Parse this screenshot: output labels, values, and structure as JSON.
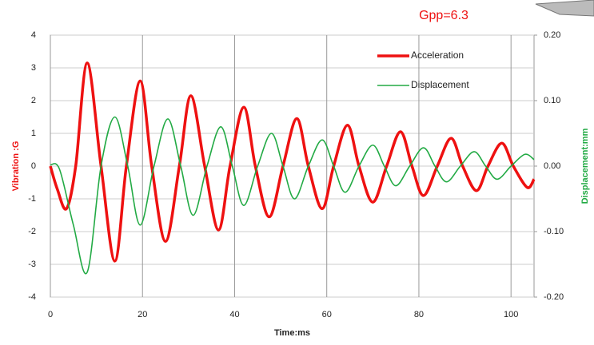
{
  "chart_data": {
    "type": "line",
    "annotation": "Gpp=6.3",
    "xlabel": "Time:ms",
    "ylabel": "Vibration :G",
    "y2label": "Displacement:mm",
    "xlim": [
      0,
      105
    ],
    "xticks": [
      0,
      20,
      40,
      60,
      80,
      100
    ],
    "ylim": [
      -4,
      4
    ],
    "yticks": [
      -4,
      -3,
      -2,
      -1,
      0,
      1,
      2,
      3,
      4
    ],
    "y2lim": [
      -0.2,
      0.2
    ],
    "y2ticks": [
      {
        "value": -0.2,
        "label": "-0.20"
      },
      {
        "value": -0.1,
        "label": "-0.10"
      },
      {
        "value": 0,
        "label": "0.00"
      },
      {
        "value": 0.1,
        "label": "0.10"
      },
      {
        "value": 0.2,
        "label": "0.20"
      }
    ],
    "grid": true,
    "legend": "upper right",
    "series": [
      {
        "name": "Acceleration",
        "color": "#ee1111",
        "width": 3.5,
        "x": [
          0,
          1.5,
          3.5,
          5.5,
          8,
          11,
          14,
          16.5,
          19.5,
          22,
          25,
          28,
          30.5,
          33.5,
          36.5,
          39,
          42,
          44.5,
          47.5,
          50.5,
          53.5,
          56,
          59,
          61.5,
          64.5,
          67,
          70,
          73,
          76,
          78.5,
          81,
          84,
          87,
          89.5,
          92.5,
          95,
          98,
          100.5,
          103.5,
          105
        ],
        "values": [
          0,
          -0.7,
          -1.3,
          0,
          3.15,
          0,
          -2.9,
          0,
          2.6,
          0,
          -2.3,
          0,
          2.15,
          0,
          -1.95,
          0,
          1.8,
          0,
          -1.55,
          0,
          1.45,
          0,
          -1.3,
          0,
          1.25,
          0,
          -1.1,
          0,
          1.05,
          0,
          -0.9,
          0,
          0.85,
          0,
          -0.75,
          0,
          0.7,
          0,
          -0.65,
          -0.4
        ]
      },
      {
        "name": "Displacement",
        "color": "#22aa44",
        "width": 1.6,
        "axis": "y2",
        "x": [
          0,
          2,
          5,
          8,
          11,
          14,
          16.8,
          19.5,
          22.5,
          25.5,
          28.3,
          31,
          34,
          37,
          39.5,
          42,
          45,
          48,
          50.5,
          53,
          56,
          59,
          61.5,
          64,
          67,
          70,
          72.5,
          75,
          78,
          81,
          83.5,
          86,
          89,
          92,
          94.5,
          97,
          100,
          103,
          105
        ],
        "values": [
          0.002,
          -0.005,
          -0.09,
          -0.162,
          0,
          0.075,
          0,
          -0.09,
          0,
          0.072,
          0,
          -0.075,
          0,
          0.06,
          0,
          -0.06,
          0,
          0.05,
          0,
          -0.05,
          0,
          0.04,
          0,
          -0.04,
          0,
          0.032,
          0,
          -0.03,
          0,
          0.028,
          0,
          -0.024,
          0,
          0.022,
          0,
          -0.02,
          0,
          0.018,
          0.01
        ]
      }
    ]
  }
}
